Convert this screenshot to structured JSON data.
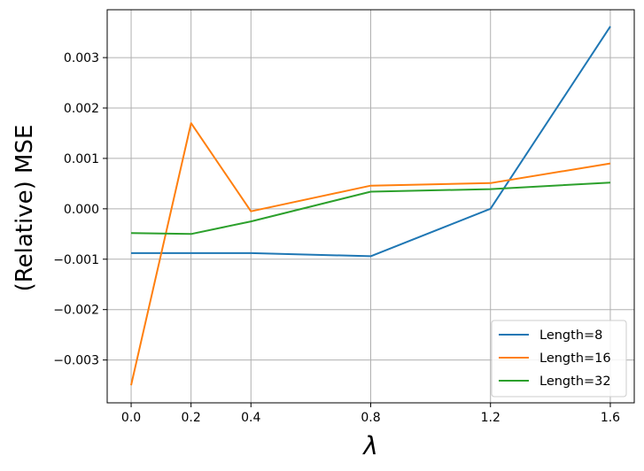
{
  "chart_data": {
    "type": "line",
    "x": [
      0.0,
      0.2,
      0.4,
      0.8,
      1.2,
      1.6
    ],
    "series": [
      {
        "name": "Length=8",
        "color": "#1f77b4",
        "values": [
          -0.00088,
          -0.00088,
          -0.00088,
          -0.00094,
          0.0,
          0.00362
        ]
      },
      {
        "name": "Length=16",
        "color": "#ff7f0e",
        "values": [
          -0.0035,
          0.0017,
          -5e-05,
          0.00046,
          0.00051,
          0.0009
        ]
      },
      {
        "name": "Length=32",
        "color": "#2ca02c",
        "values": [
          -0.00048,
          -0.0005,
          -0.00025,
          0.00034,
          0.00039,
          0.00052
        ]
      }
    ],
    "xticks": [
      0.0,
      0.2,
      0.4,
      0.8,
      1.2,
      1.6
    ],
    "xtick_labels": [
      "0.0",
      "0.2",
      "0.4",
      "0.8",
      "1.2",
      "1.6"
    ],
    "yticks": [
      -0.003,
      -0.002,
      -0.001,
      0.0,
      0.001,
      0.002,
      0.003
    ],
    "ytick_labels": [
      "−0.003",
      "−0.002",
      "−0.001",
      "0.000",
      "0.001",
      "0.002",
      "0.003"
    ],
    "xlabel": "λ",
    "ylabel": "(Relative) MSE",
    "xlim": [
      -0.08,
      1.68
    ],
    "ylim": [
      -0.00385,
      0.00395
    ],
    "grid": true,
    "legend_position": "bottom-right"
  }
}
